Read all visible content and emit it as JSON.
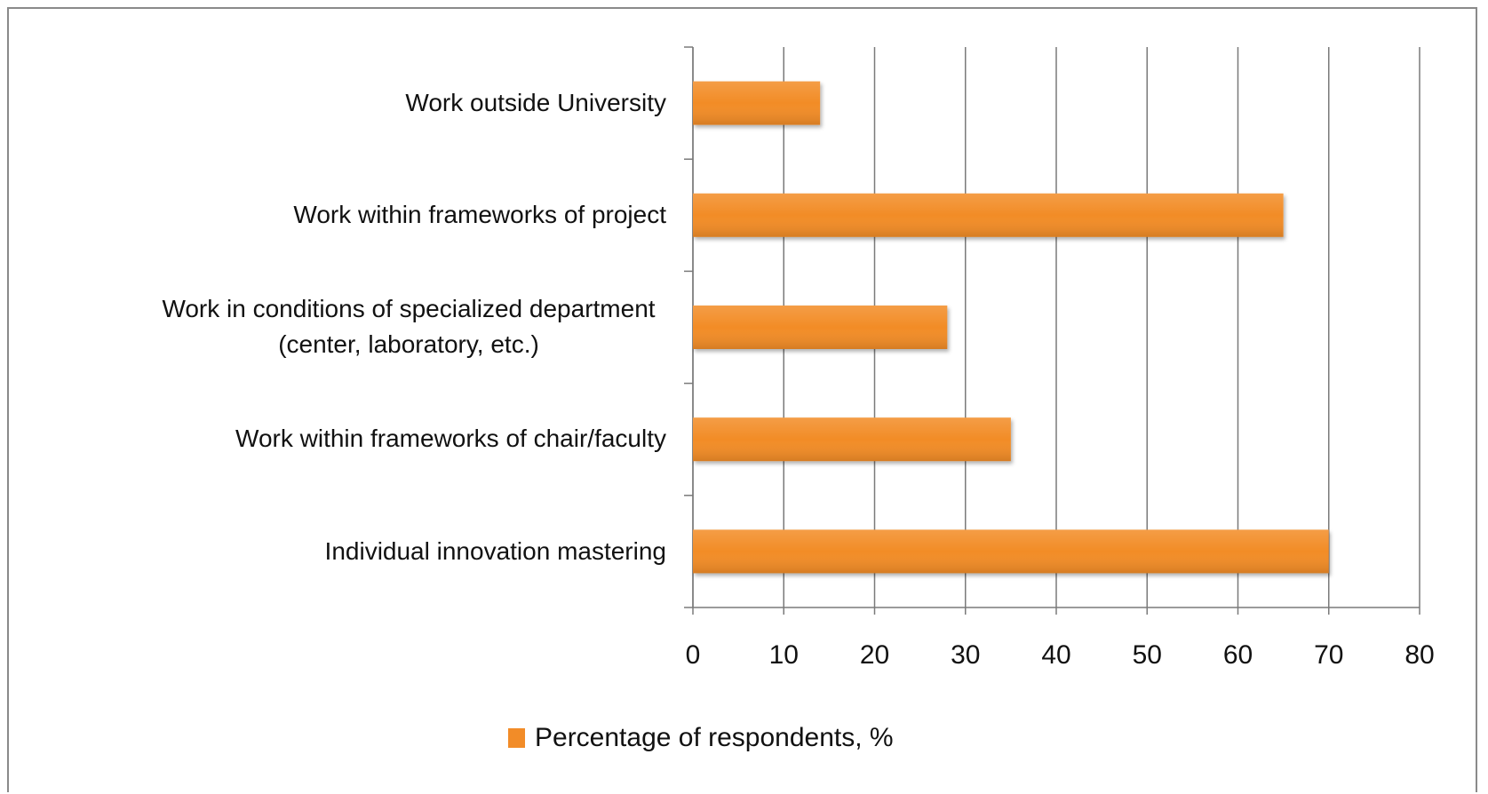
{
  "chart_data": {
    "type": "bar",
    "orientation": "horizontal",
    "categories": [
      "Work outside University",
      "Work within frameworks of project",
      "Work in conditions of specialized department (center, laboratory, etc.)",
      "Work within frameworks of chair/faculty",
      "Individual innovation mastering"
    ],
    "series": [
      {
        "name": "Percentage of respondents, %",
        "color": "#f28c28",
        "values": [
          14,
          65,
          28,
          35,
          70
        ]
      }
    ],
    "xlim": [
      0,
      80
    ],
    "xticks": [
      0,
      10,
      20,
      30,
      40,
      50,
      60,
      70,
      80
    ],
    "grid": true,
    "legend": "bottom"
  }
}
